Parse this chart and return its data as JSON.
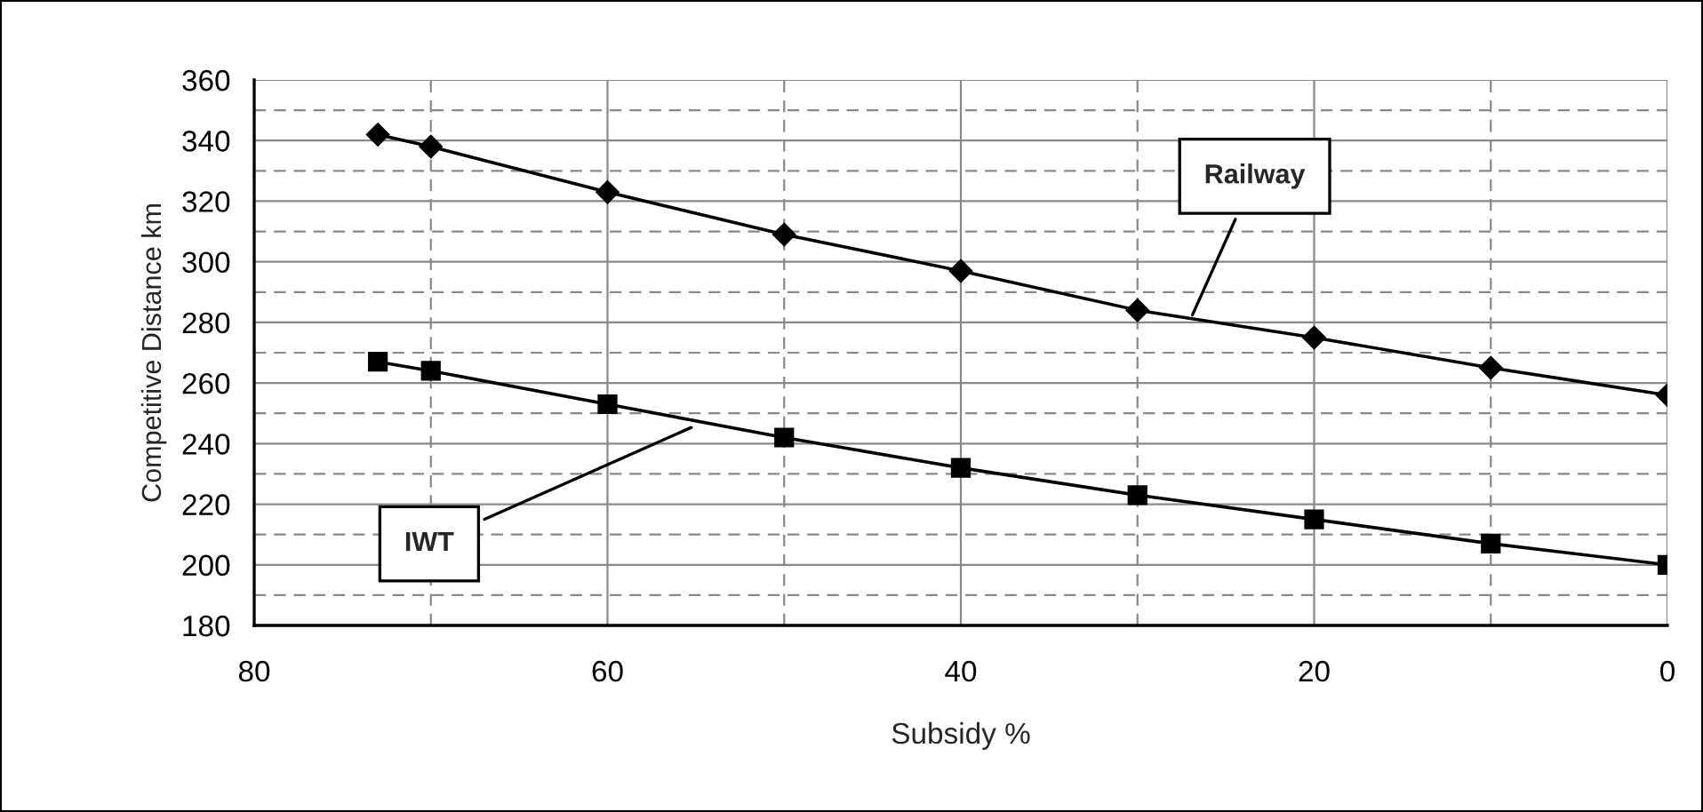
{
  "chart_data": {
    "type": "line",
    "xlabel": "Subsidy %",
    "ylabel": "Competitive Distance km",
    "x": [
      73,
      70,
      60,
      50,
      40,
      30,
      20,
      10,
      0
    ],
    "series": [
      {
        "color": "#000000",
        "marker": "diamond",
        "values": [
          342,
          338,
          323,
          309,
          297,
          284,
          275,
          265,
          256
        ]
      },
      {
        "color": "#000000",
        "marker": "square",
        "values": [
          267,
          264,
          253,
          242,
          232,
          223,
          215,
          207,
          200
        ]
      }
    ],
    "xlim": [
      80,
      0
    ],
    "xticks": [
      80,
      60,
      40,
      20,
      0
    ],
    "ylim": [
      180,
      360
    ],
    "yticks": [
      180,
      200,
      220,
      240,
      260,
      280,
      300,
      320,
      340,
      360
    ],
    "grid": true,
    "line_style": "solid",
    "annotations": [
      {
        "text": "Railway",
        "x": 27,
        "y": 281
      },
      {
        "text": "IWT",
        "x": 55,
        "y": 246
      }
    ]
  }
}
